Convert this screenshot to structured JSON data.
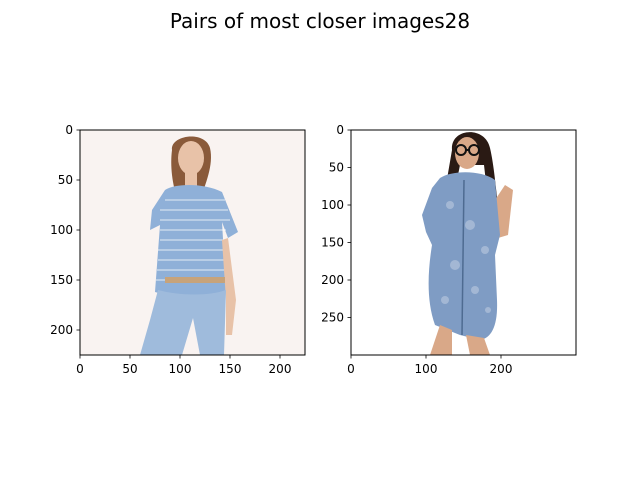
{
  "figure": {
    "title": "Pairs of most closer images28"
  },
  "chart_data": [
    {
      "type": "image",
      "description_role": "left-panel",
      "image_size": [
        225,
        225
      ],
      "xlim": [
        0,
        225
      ],
      "ylim": [
        225,
        0
      ],
      "xticks": [
        0,
        50,
        100,
        150,
        200
      ],
      "yticks": [
        0,
        50,
        100,
        150,
        200
      ],
      "xlabel": "",
      "ylabel": "",
      "colors": {
        "background": "#f9f3f1",
        "shirt": "#8fb0d8",
        "jeans": "#9fbbdc",
        "skin": "#e8c2a8",
        "hair": "#8a5a3a"
      }
    },
    {
      "type": "image",
      "description_role": "right-panel",
      "image_size": [
        300,
        300
      ],
      "xlim": [
        0,
        300
      ],
      "ylim": [
        300,
        0
      ],
      "xticks": [
        0,
        100,
        200
      ],
      "yticks": [
        0,
        50,
        100,
        150,
        200,
        250
      ],
      "xlabel": "",
      "ylabel": "",
      "colors": {
        "background": "#ffffff",
        "dress": "#7f9cc4",
        "skin": "#d9a888",
        "hair": "#2a1a14"
      }
    }
  ]
}
